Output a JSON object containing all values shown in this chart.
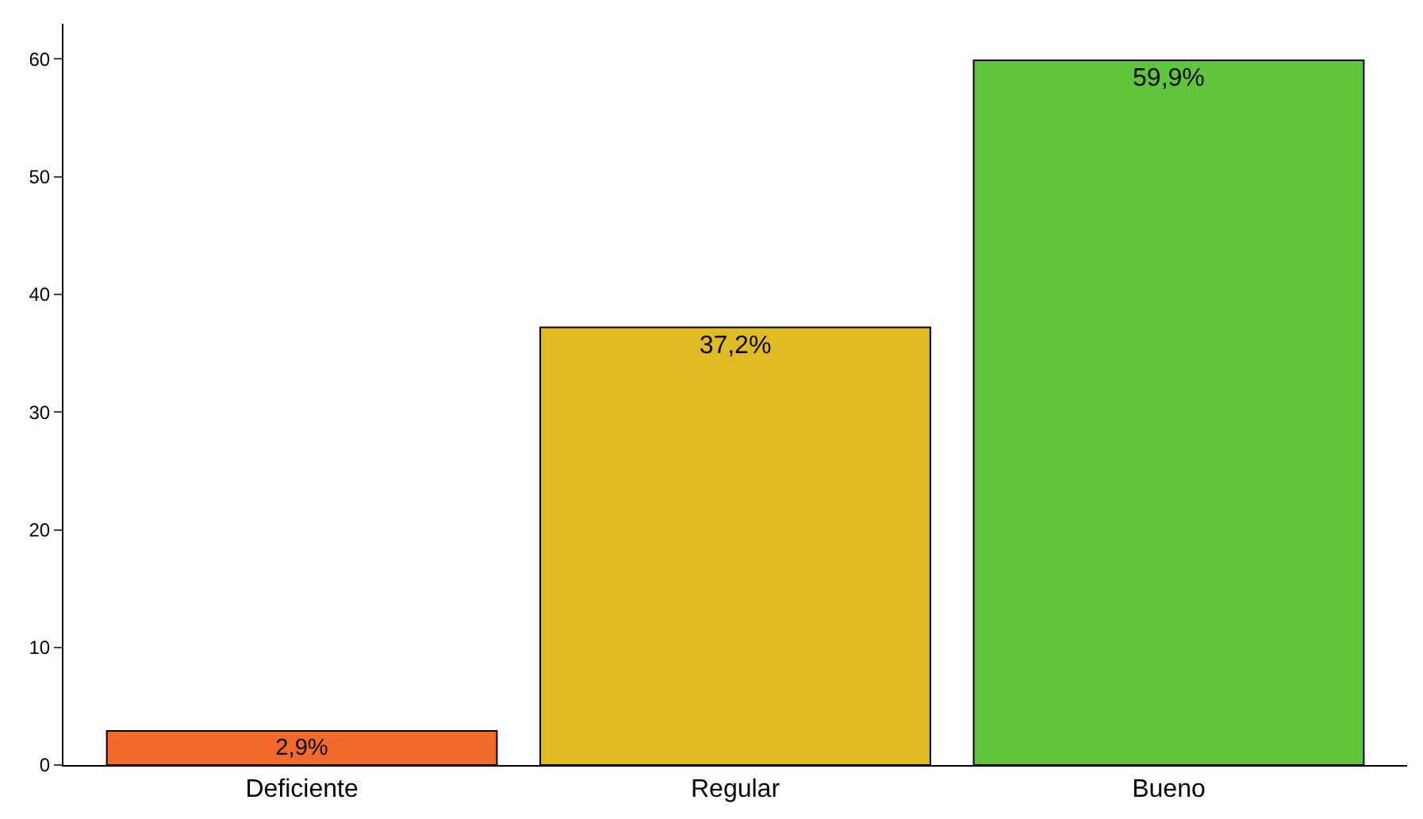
{
  "chart_data": {
    "type": "bar",
    "categories": [
      "Deficiente",
      "Regular",
      "Bueno"
    ],
    "values": [
      2.9,
      37.2,
      59.9
    ],
    "colors": [
      "#f26a2a",
      "#e0bb22",
      "#5ec63a"
    ],
    "value_labels": [
      "2,9%",
      "37,2%",
      "59,9%"
    ],
    "ylim": [
      0,
      63
    ],
    "yticks": [
      0,
      10,
      20,
      30,
      40,
      50,
      60
    ]
  }
}
